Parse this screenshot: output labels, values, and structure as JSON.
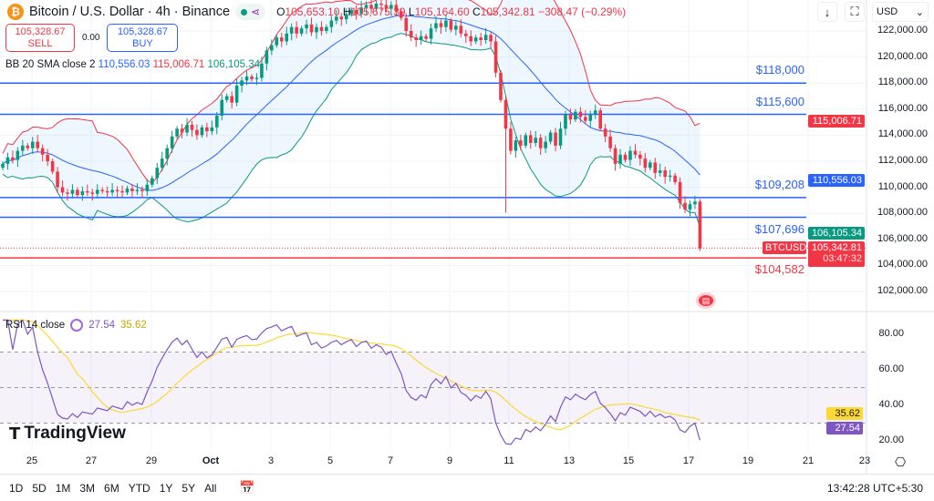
{
  "header": {
    "symbol_title": "Bitcoin / U.S. Dollar · 4h · Binance",
    "open_label": "O",
    "open": "105,653.10",
    "high_label": "H",
    "high": "105,675.39",
    "low_label": "L",
    "low": "105,164.60",
    "close_label": "C",
    "close": "105,342.81",
    "change": "−308.47 (−0.29%)"
  },
  "trade": {
    "sell_price": "105,328.67",
    "sell_label": "SELL",
    "spread": "0.00",
    "buy_price": "105,328.67",
    "buy_label": "BUY"
  },
  "bb_legend": {
    "label": "BB 20 SMA close 2",
    "basis": "110,556.03",
    "upper": "115,006.71",
    "lower": "106,105.34"
  },
  "rsi_legend": {
    "label": "RSI 14 close",
    "rsi": "27.54",
    "ma": "35.62"
  },
  "toolbar": {
    "currency": "USD",
    "icons": [
      "arrow-down-icon",
      "fullscreen-icon"
    ]
  },
  "price_axis": [
    "122,000.00",
    "120,000.00",
    "118,000.00",
    "116,000.00",
    "114,000.00",
    "112,000.00",
    "110,000.00",
    "108,000.00",
    "106,000.00",
    "104,000.00",
    "102,000.00"
  ],
  "price_badges": {
    "upper": "115,006.71",
    "basis": "110,556.03",
    "lower": "106,105.34",
    "symbol": "BTCUSD",
    "last": "105,342.81",
    "countdown": "03:47:32"
  },
  "rsi_axis": [
    "80.00",
    "60.00",
    "40.00",
    "20.00"
  ],
  "rsi_badges": {
    "ma": "35.62",
    "rsi": "27.54"
  },
  "time_axis": [
    "25",
    "27",
    "29",
    "Oct",
    "3",
    "5",
    "7",
    "9",
    "11",
    "13",
    "15",
    "17",
    "19",
    "21",
    "23"
  ],
  "timeframes": [
    "1D",
    "5D",
    "1M",
    "3M",
    "6M",
    "YTD",
    "1Y",
    "5Y",
    "All"
  ],
  "clock": "13:42:28 UTC+5:30",
  "brand": "TradingView",
  "colors": {
    "up": "#089981",
    "down": "#f23645",
    "bb_basis": "#2962ff",
    "bb_upper": "#f23645",
    "bb_lower": "#089981",
    "rsi": "#7e57c2",
    "rsi_ma": "#fdd835",
    "level_blue": "#2962ff",
    "level_red": "#f23645"
  },
  "chart_data": {
    "type": "candlestick",
    "interval": "4h",
    "ylim": [
      101000,
      124500
    ],
    "rsi_ylim": [
      15,
      90
    ],
    "rsi_bands": [
      70,
      50,
      30
    ],
    "closes": [
      111800,
      112300,
      112100,
      112800,
      113200,
      113000,
      113500,
      113000,
      112500,
      112000,
      111200,
      110000,
      109600,
      109500,
      109800,
      109400,
      109700,
      109600,
      109500,
      109800,
      109700,
      109600,
      109800,
      109700,
      109600,
      109900,
      109700,
      109800,
      109700,
      110200,
      110700,
      111500,
      112200,
      113000,
      113900,
      114500,
      114200,
      114800,
      114400,
      114000,
      114600,
      114300,
      114600,
      115500,
      116700,
      117000,
      116500,
      117800,
      118200,
      118500,
      118300,
      118400,
      119500,
      120500,
      120900,
      121500,
      121200,
      121800,
      122300,
      121800,
      122200,
      122500,
      121900,
      122300,
      122000,
      122300,
      122800,
      123100,
      122900,
      123300,
      123600,
      123300,
      123800,
      124000,
      123700,
      124100,
      124000,
      123700,
      124000,
      123500,
      123000,
      122000,
      121500,
      121300,
      121600,
      121400,
      122200,
      122600,
      122300,
      122800,
      122100,
      122400,
      121800,
      121600,
      121200,
      121500,
      121300,
      121700,
      121200,
      118800,
      116700,
      114500,
      112800,
      113600,
      113200,
      114000,
      113400,
      113800,
      113000,
      113500,
      114200,
      113200,
      114500,
      115600,
      115200,
      115800,
      115400,
      115100,
      115600,
      115900,
      114500,
      113900,
      113000,
      111800,
      112500,
      112100,
      112800,
      112500,
      112200,
      111500,
      111900,
      111100,
      111300,
      110800,
      110900,
      110400,
      108800,
      108300,
      108700,
      108900,
      105300
    ],
    "levels": [
      {
        "price": 118000,
        "label": "$118,000",
        "color": "blue"
      },
      {
        "price": 115600,
        "label": "$115,600",
        "color": "blue"
      },
      {
        "price": 109208,
        "label": "$109,208",
        "color": "blue"
      },
      {
        "price": 107696,
        "label": "$107,696",
        "color": "blue"
      },
      {
        "price": 104582,
        "label": "$104,582",
        "color": "red"
      }
    ],
    "last_price": 105342.81
  }
}
